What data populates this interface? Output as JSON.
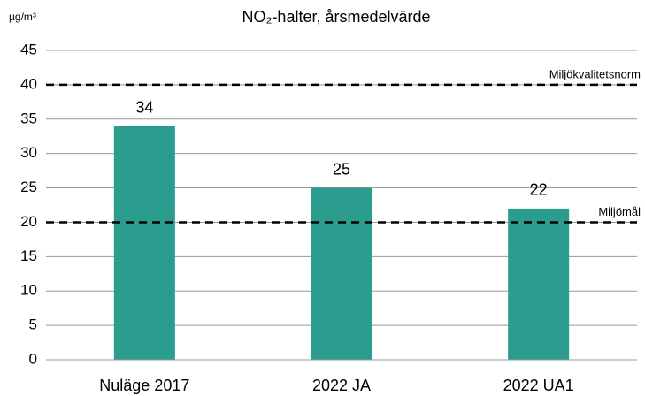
{
  "chart_data": {
    "type": "bar",
    "title": "NO₂-halter, årsmedelvärde",
    "y_label": "µg/m³",
    "categories": [
      "Nuläge 2017",
      "2022 JA",
      "2022 UA1"
    ],
    "values": [
      34,
      25,
      22
    ],
    "color": "#2a9d8f",
    "ylim": [
      0,
      45
    ],
    "yticks": [
      0,
      5,
      10,
      15,
      20,
      25,
      30,
      35,
      40,
      45
    ],
    "grid": true,
    "reference_lines": [
      {
        "value": 40,
        "label": "Miljökvalitetsnorm"
      },
      {
        "value": 20,
        "label": "Miljömål"
      }
    ]
  }
}
